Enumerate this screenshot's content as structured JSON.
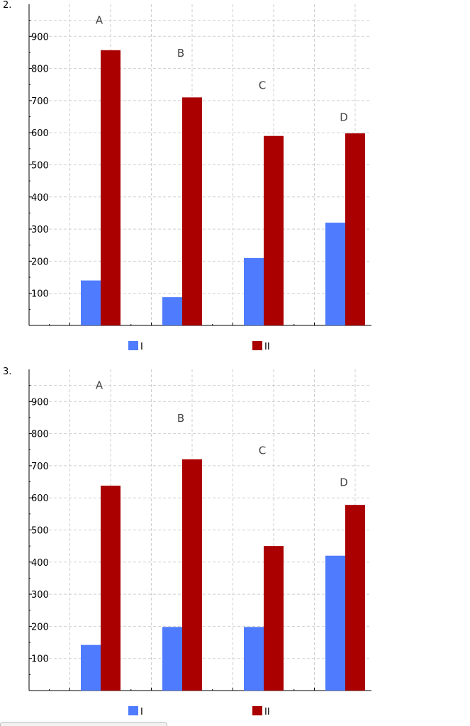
{
  "chart_data": [
    {
      "type": "bar",
      "number_label": "2.",
      "categories": [
        "A",
        "B",
        "C",
        "D"
      ],
      "series": [
        {
          "name": "I",
          "values": [
            140,
            88,
            210,
            320
          ],
          "color": "#4f7cff"
        },
        {
          "name": "II",
          "values": [
            857,
            710,
            590,
            598
          ],
          "color": "#aa0000"
        }
      ],
      "ylim": [
        0,
        1000
      ],
      "yticks": [
        100,
        200,
        300,
        400,
        500,
        600,
        700,
        800,
        900
      ],
      "grid": true,
      "legend": "bottom"
    },
    {
      "type": "bar",
      "number_label": "3.",
      "categories": [
        "A",
        "B",
        "C",
        "D"
      ],
      "series": [
        {
          "name": "I",
          "values": [
            142,
            198,
            198,
            420
          ],
          "color": "#4f7cff"
        },
        {
          "name": "II",
          "values": [
            638,
            720,
            450,
            578
          ],
          "color": "#aa0000"
        }
      ],
      "ylim": [
        0,
        1000
      ],
      "yticks": [
        100,
        200,
        300,
        400,
        500,
        600,
        700,
        800,
        900
      ],
      "grid": true,
      "legend": "bottom"
    }
  ]
}
